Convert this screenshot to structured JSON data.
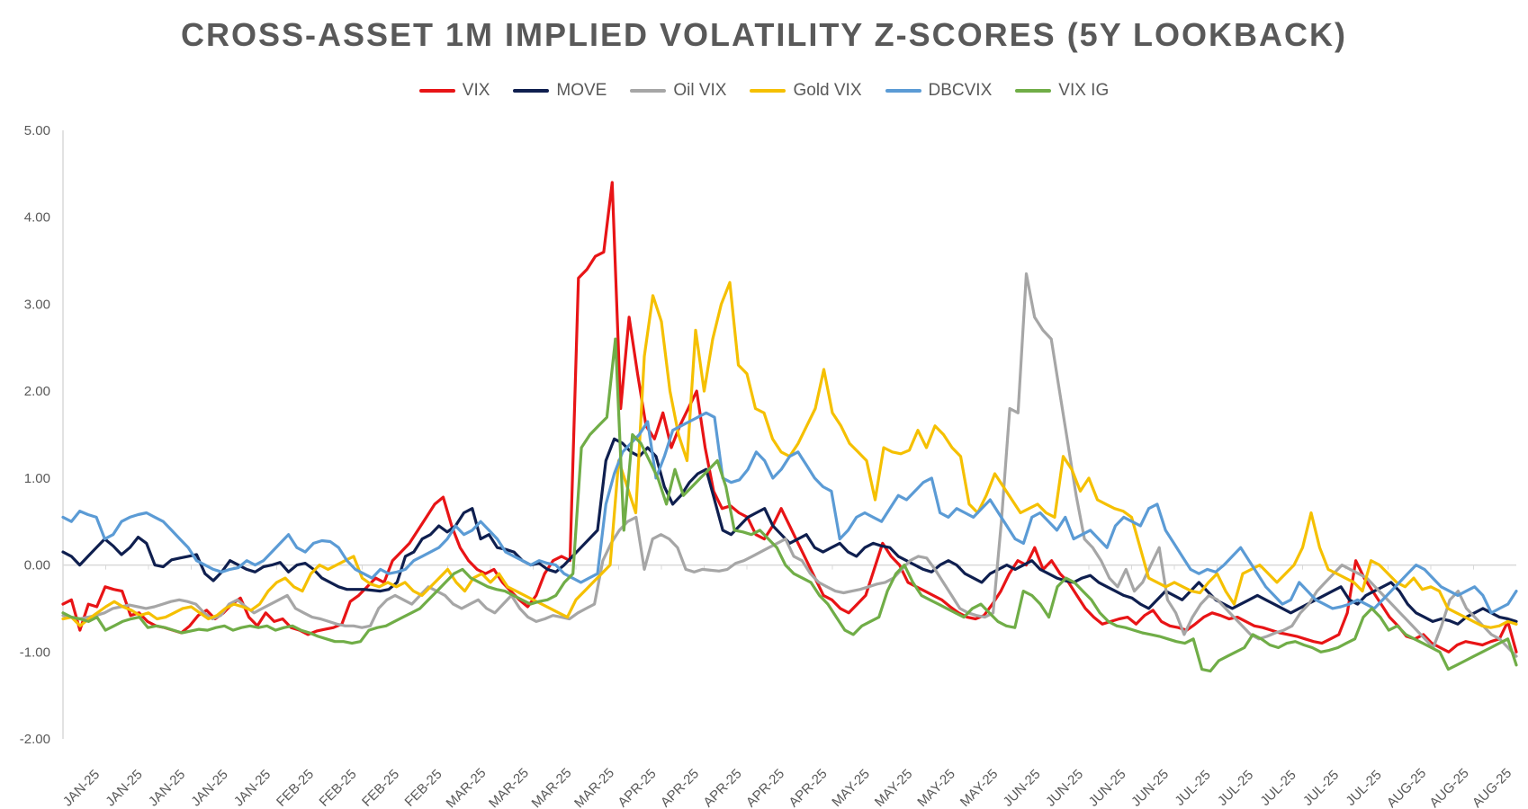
{
  "chart_data": {
    "type": "line",
    "title": "CROSS-ASSET 1M IMPLIED VOLATILITY Z-SCORES (5Y LOOKBACK)",
    "xlabel": "",
    "ylabel": "",
    "ylim": [
      -2,
      5
    ],
    "y_ticks": [
      "5.00",
      "4.00",
      "3.00",
      "2.00",
      "1.00",
      "0.00",
      "-1.00",
      "-2.00"
    ],
    "x_tick_labels": [
      "JAN-25",
      "JAN-25",
      "JAN-25",
      "JAN-25",
      "JAN-25",
      "FEB-25",
      "FEB-25",
      "FEB-25",
      "FEB-25",
      "MAR-25",
      "MAR-25",
      "MAR-25",
      "MAR-25",
      "APR-25",
      "APR-25",
      "APR-25",
      "APR-25",
      "APR-25",
      "MAY-25",
      "MAY-25",
      "MAY-25",
      "MAY-25",
      "JUN-25",
      "JUN-25",
      "JUN-25",
      "JUN-25",
      "JUL-25",
      "JUL-25",
      "JUL-25",
      "JUL-25",
      "JUL-25",
      "AUG-25",
      "AUG-25",
      "AUG-25"
    ],
    "legend_position": "top-center",
    "grid": false,
    "series": [
      {
        "name": "VIX",
        "color": "#e81416",
        "values": [
          -0.45,
          -0.4,
          -0.75,
          -0.45,
          -0.48,
          -0.25,
          -0.28,
          -0.3,
          -0.58,
          -0.55,
          -0.65,
          -0.7,
          -0.72,
          -0.75,
          -0.78,
          -0.7,
          -0.58,
          -0.52,
          -0.62,
          -0.55,
          -0.45,
          -0.38,
          -0.6,
          -0.7,
          -0.55,
          -0.65,
          -0.62,
          -0.72,
          -0.75,
          -0.8,
          -0.76,
          -0.74,
          -0.72,
          -0.68,
          -0.42,
          -0.35,
          -0.25,
          -0.15,
          -0.2,
          0.05,
          0.15,
          0.25,
          0.4,
          0.55,
          0.7,
          0.78,
          0.45,
          0.2,
          0.05,
          -0.05,
          -0.1,
          -0.05,
          -0.2,
          -0.3,
          -0.4,
          -0.48,
          -0.35,
          -0.1,
          0.05,
          0.1,
          0.05,
          3.3,
          3.4,
          3.55,
          3.6,
          4.4,
          1.8,
          2.85,
          2.2,
          1.6,
          1.45,
          1.75,
          1.35,
          1.6,
          1.8,
          2.0,
          1.35,
          0.85,
          0.65,
          0.68,
          0.6,
          0.55,
          0.35,
          0.3,
          0.45,
          0.65,
          0.45,
          0.25,
          0.05,
          -0.15,
          -0.35,
          -0.4,
          -0.5,
          -0.55,
          -0.45,
          -0.35,
          -0.05,
          0.25,
          0.1,
          0.0,
          -0.2,
          -0.25,
          -0.3,
          -0.35,
          -0.4,
          -0.48,
          -0.55,
          -0.6,
          -0.62,
          -0.58,
          -0.45,
          -0.3,
          -0.1,
          0.05,
          0.0,
          0.2,
          -0.05,
          0.05,
          -0.1,
          -0.2,
          -0.35,
          -0.5,
          -0.6,
          -0.68,
          -0.65,
          -0.62,
          -0.6,
          -0.68,
          -0.58,
          -0.52,
          -0.65,
          -0.7,
          -0.72,
          -0.75,
          -0.68,
          -0.6,
          -0.55,
          -0.58,
          -0.62,
          -0.6,
          -0.65,
          -0.7,
          -0.72,
          -0.75,
          -0.78,
          -0.8,
          -0.82,
          -0.85,
          -0.88,
          -0.9,
          -0.85,
          -0.8,
          -0.55,
          0.05,
          -0.15,
          -0.3,
          -0.45,
          -0.6,
          -0.7,
          -0.82,
          -0.85,
          -0.8,
          -0.9,
          -0.95,
          -1.0,
          -0.92,
          -0.88,
          -0.9,
          -0.92,
          -0.88,
          -0.85,
          -0.65,
          -1.0
        ]
      },
      {
        "name": "MOVE",
        "color": "#0f1f4f",
        "values": [
          0.15,
          0.1,
          0.0,
          0.1,
          0.2,
          0.3,
          0.22,
          0.12,
          0.2,
          0.32,
          0.25,
          0.0,
          -0.02,
          0.06,
          0.08,
          0.1,
          0.12,
          -0.1,
          -0.18,
          -0.08,
          0.05,
          0.0,
          -0.05,
          -0.08,
          -0.02,
          0.0,
          0.03,
          -0.08,
          0.0,
          0.02,
          -0.05,
          -0.15,
          -0.2,
          -0.25,
          -0.28,
          -0.28,
          -0.28,
          -0.29,
          -0.3,
          -0.28,
          -0.2,
          0.1,
          0.15,
          0.3,
          0.35,
          0.45,
          0.38,
          0.45,
          0.6,
          0.65,
          0.3,
          0.35,
          0.2,
          0.18,
          0.15,
          0.05,
          0.0,
          0.02,
          -0.05,
          -0.08,
          0.0,
          0.1,
          0.2,
          0.3,
          0.4,
          1.2,
          1.45,
          1.4,
          1.3,
          1.25,
          1.35,
          1.25,
          0.9,
          0.7,
          0.8,
          0.95,
          1.05,
          1.1,
          0.75,
          0.4,
          0.35,
          0.45,
          0.55,
          0.6,
          0.65,
          0.45,
          0.35,
          0.25,
          0.3,
          0.35,
          0.2,
          0.15,
          0.2,
          0.25,
          0.15,
          0.1,
          0.2,
          0.25,
          0.22,
          0.2,
          0.1,
          0.05,
          0.0,
          -0.05,
          -0.08,
          0.0,
          0.05,
          0.0,
          -0.1,
          -0.15,
          -0.2,
          -0.1,
          -0.05,
          0.0,
          -0.05,
          0.0,
          0.05,
          -0.05,
          -0.1,
          -0.15,
          -0.18,
          -0.2,
          -0.15,
          -0.12,
          -0.2,
          -0.25,
          -0.3,
          -0.35,
          -0.38,
          -0.45,
          -0.5,
          -0.4,
          -0.3,
          -0.35,
          -0.4,
          -0.3,
          -0.2,
          -0.3,
          -0.4,
          -0.45,
          -0.5,
          -0.45,
          -0.4,
          -0.35,
          -0.4,
          -0.45,
          -0.5,
          -0.55,
          -0.5,
          -0.45,
          -0.4,
          -0.35,
          -0.3,
          -0.25,
          -0.4,
          -0.45,
          -0.35,
          -0.3,
          -0.25,
          -0.2,
          -0.3,
          -0.45,
          -0.55,
          -0.6,
          -0.65,
          -0.62,
          -0.64,
          -0.68,
          -0.6,
          -0.55,
          -0.5,
          -0.55,
          -0.6,
          -0.62,
          -0.65
        ]
      },
      {
        "name": "Oil VIX",
        "color": "#a6a6a6",
        "values": [
          -0.58,
          -0.6,
          -0.62,
          -0.6,
          -0.58,
          -0.55,
          -0.5,
          -0.48,
          -0.46,
          -0.48,
          -0.5,
          -0.48,
          -0.45,
          -0.42,
          -0.4,
          -0.42,
          -0.45,
          -0.55,
          -0.62,
          -0.58,
          -0.45,
          -0.4,
          -0.48,
          -0.55,
          -0.5,
          -0.45,
          -0.4,
          -0.35,
          -0.5,
          -0.55,
          -0.6,
          -0.62,
          -0.65,
          -0.68,
          -0.7,
          -0.7,
          -0.72,
          -0.7,
          -0.5,
          -0.4,
          -0.35,
          -0.4,
          -0.45,
          -0.35,
          -0.25,
          -0.3,
          -0.35,
          -0.45,
          -0.5,
          -0.45,
          -0.4,
          -0.5,
          -0.55,
          -0.45,
          -0.35,
          -0.5,
          -0.6,
          -0.65,
          -0.62,
          -0.58,
          -0.6,
          -0.62,
          -0.55,
          -0.5,
          -0.45,
          0.05,
          0.25,
          0.4,
          0.5,
          0.55,
          -0.05,
          0.3,
          0.35,
          0.3,
          0.2,
          -0.05,
          -0.08,
          -0.05,
          -0.06,
          -0.07,
          -0.05,
          0.02,
          0.05,
          0.1,
          0.15,
          0.2,
          0.25,
          0.3,
          0.1,
          0.05,
          -0.1,
          -0.2,
          -0.25,
          -0.3,
          -0.32,
          -0.3,
          -0.28,
          -0.25,
          -0.22,
          -0.2,
          -0.15,
          -0.05,
          0.05,
          0.1,
          0.08,
          -0.05,
          -0.2,
          -0.35,
          -0.5,
          -0.55,
          -0.58,
          -0.6,
          -0.55,
          0.5,
          1.8,
          1.75,
          3.35,
          2.85,
          2.7,
          2.6,
          2.0,
          1.4,
          0.8,
          0.3,
          0.2,
          0.05,
          -0.15,
          -0.25,
          -0.05,
          -0.3,
          -0.2,
          0.0,
          0.2,
          -0.4,
          -0.55,
          -0.8,
          -0.6,
          -0.45,
          -0.35,
          -0.4,
          -0.5,
          -0.6,
          -0.7,
          -0.8,
          -0.85,
          -0.82,
          -0.78,
          -0.75,
          -0.7,
          -0.55,
          -0.45,
          -0.3,
          -0.2,
          -0.1,
          0.0,
          -0.05,
          -0.1,
          -0.15,
          -0.25,
          -0.35,
          -0.45,
          -0.55,
          -0.65,
          -0.75,
          -0.85,
          -0.95,
          -0.7,
          -0.4,
          -0.3,
          -0.5,
          -0.6,
          -0.7,
          -0.8,
          -0.85,
          -0.95,
          -1.05
        ]
      },
      {
        "name": "Gold VIX",
        "color": "#f5c000",
        "values": [
          -0.62,
          -0.6,
          -0.7,
          -0.62,
          -0.55,
          -0.48,
          -0.42,
          -0.48,
          -0.52,
          -0.58,
          -0.55,
          -0.62,
          -0.6,
          -0.55,
          -0.5,
          -0.48,
          -0.55,
          -0.62,
          -0.58,
          -0.5,
          -0.45,
          -0.48,
          -0.52,
          -0.45,
          -0.3,
          -0.2,
          -0.15,
          -0.25,
          -0.3,
          -0.1,
          0.0,
          -0.05,
          0.0,
          0.05,
          0.1,
          -0.15,
          -0.22,
          -0.25,
          -0.2,
          -0.25,
          -0.2,
          -0.3,
          -0.35,
          -0.25,
          -0.15,
          -0.05,
          -0.2,
          -0.3,
          -0.15,
          -0.1,
          -0.2,
          -0.1,
          -0.25,
          -0.3,
          -0.35,
          -0.4,
          -0.45,
          -0.5,
          -0.55,
          -0.6,
          -0.4,
          -0.3,
          -0.2,
          -0.1,
          0.0,
          1.2,
          0.9,
          0.6,
          2.4,
          3.1,
          2.8,
          2.0,
          1.5,
          1.2,
          2.7,
          2.0,
          2.6,
          3.0,
          3.25,
          2.3,
          2.2,
          1.8,
          1.75,
          1.45,
          1.3,
          1.25,
          1.4,
          1.6,
          1.8,
          2.25,
          1.75,
          1.6,
          1.4,
          1.3,
          1.2,
          0.75,
          1.35,
          1.3,
          1.28,
          1.32,
          1.55,
          1.35,
          1.6,
          1.5,
          1.35,
          1.25,
          0.7,
          0.6,
          0.8,
          1.05,
          0.9,
          0.75,
          0.6,
          0.65,
          0.7,
          0.6,
          0.55,
          1.25,
          1.1,
          0.85,
          1.0,
          0.75,
          0.7,
          0.65,
          0.62,
          0.55,
          0.2,
          -0.15,
          -0.2,
          -0.25,
          -0.2,
          -0.25,
          -0.3,
          -0.32,
          -0.2,
          -0.1,
          -0.3,
          -0.45,
          -0.1,
          -0.05,
          0.0,
          -0.1,
          -0.2,
          -0.1,
          0.0,
          0.2,
          0.6,
          0.2,
          -0.05,
          -0.1,
          -0.15,
          -0.2,
          -0.3,
          0.05,
          0.0,
          -0.1,
          -0.2,
          -0.25,
          -0.15,
          -0.28,
          -0.25,
          -0.3,
          -0.5,
          -0.55,
          -0.6,
          -0.65,
          -0.7,
          -0.72,
          -0.7,
          -0.65,
          -0.68
        ]
      },
      {
        "name": "DBCVIX",
        "color": "#5b9bd5",
        "values": [
          0.55,
          0.5,
          0.62,
          0.58,
          0.55,
          0.3,
          0.35,
          0.5,
          0.55,
          0.58,
          0.6,
          0.55,
          0.5,
          0.4,
          0.3,
          0.2,
          0.05,
          0.0,
          -0.05,
          -0.08,
          -0.05,
          -0.03,
          0.05,
          0.0,
          0.05,
          0.15,
          0.25,
          0.35,
          0.2,
          0.15,
          0.25,
          0.28,
          0.27,
          0.2,
          0.05,
          -0.05,
          -0.1,
          -0.15,
          -0.05,
          -0.1,
          -0.08,
          -0.05,
          0.05,
          0.1,
          0.15,
          0.2,
          0.3,
          0.45,
          0.35,
          0.4,
          0.5,
          0.4,
          0.3,
          0.15,
          0.1,
          0.05,
          0.0,
          0.05,
          0.02,
          0.0,
          -0.1,
          -0.15,
          -0.2,
          -0.15,
          -0.1,
          0.7,
          1.05,
          1.3,
          1.4,
          1.5,
          1.65,
          1.0,
          1.25,
          1.55,
          1.6,
          1.65,
          1.7,
          1.75,
          1.7,
          1.0,
          0.95,
          0.98,
          1.1,
          1.3,
          1.2,
          1.0,
          1.1,
          1.25,
          1.3,
          1.15,
          1.0,
          0.9,
          0.85,
          0.3,
          0.4,
          0.55,
          0.6,
          0.55,
          0.5,
          0.65,
          0.8,
          0.75,
          0.85,
          0.95,
          1.0,
          0.6,
          0.55,
          0.65,
          0.6,
          0.55,
          0.65,
          0.75,
          0.6,
          0.45,
          0.3,
          0.25,
          0.55,
          0.6,
          0.5,
          0.4,
          0.55,
          0.3,
          0.35,
          0.4,
          0.3,
          0.2,
          0.45,
          0.55,
          0.5,
          0.45,
          0.65,
          0.7,
          0.4,
          0.25,
          0.1,
          -0.05,
          -0.1,
          -0.05,
          -0.08,
          0.0,
          0.1,
          0.2,
          0.05,
          -0.1,
          -0.25,
          -0.35,
          -0.45,
          -0.4,
          -0.2,
          -0.3,
          -0.4,
          -0.45,
          -0.5,
          -0.48,
          -0.45,
          -0.4,
          -0.45,
          -0.5,
          -0.4,
          -0.3,
          -0.2,
          -0.1,
          0.0,
          -0.05,
          -0.15,
          -0.25,
          -0.3,
          -0.35,
          -0.3,
          -0.25,
          -0.35,
          -0.55,
          -0.5,
          -0.45,
          -0.3
        ]
      },
      {
        "name": "VIX IG",
        "color": "#70ad47",
        "values": [
          -0.55,
          -0.6,
          -0.62,
          -0.65,
          -0.6,
          -0.75,
          -0.7,
          -0.65,
          -0.62,
          -0.6,
          -0.72,
          -0.7,
          -0.72,
          -0.75,
          -0.78,
          -0.76,
          -0.74,
          -0.75,
          -0.72,
          -0.7,
          -0.75,
          -0.72,
          -0.7,
          -0.72,
          -0.7,
          -0.75,
          -0.72,
          -0.7,
          -0.75,
          -0.78,
          -0.82,
          -0.85,
          -0.88,
          -0.88,
          -0.9,
          -0.88,
          -0.75,
          -0.72,
          -0.7,
          -0.65,
          -0.6,
          -0.55,
          -0.5,
          -0.4,
          -0.3,
          -0.2,
          -0.1,
          -0.05,
          -0.15,
          -0.2,
          -0.25,
          -0.28,
          -0.3,
          -0.35,
          -0.4,
          -0.45,
          -0.42,
          -0.4,
          -0.35,
          -0.2,
          -0.1,
          1.35,
          1.5,
          1.6,
          1.7,
          2.6,
          0.4,
          1.5,
          1.4,
          1.2,
          1.0,
          0.7,
          1.1,
          0.8,
          0.9,
          1.0,
          1.1,
          1.2,
          0.9,
          0.4,
          0.38,
          0.35,
          0.4,
          0.3,
          0.2,
          0.0,
          -0.1,
          -0.15,
          -0.2,
          -0.35,
          -0.45,
          -0.6,
          -0.75,
          -0.8,
          -0.7,
          -0.65,
          -0.6,
          -0.3,
          -0.1,
          0.0,
          -0.2,
          -0.35,
          -0.4,
          -0.45,
          -0.5,
          -0.55,
          -0.6,
          -0.5,
          -0.45,
          -0.55,
          -0.65,
          -0.7,
          -0.72,
          -0.3,
          -0.35,
          -0.45,
          -0.6,
          -0.25,
          -0.15,
          -0.2,
          -0.3,
          -0.4,
          -0.55,
          -0.65,
          -0.7,
          -0.72,
          -0.75,
          -0.78,
          -0.8,
          -0.82,
          -0.85,
          -0.88,
          -0.9,
          -0.85,
          -1.2,
          -1.22,
          -1.1,
          -1.05,
          -1.0,
          -0.95,
          -0.8,
          -0.85,
          -0.92,
          -0.95,
          -0.9,
          -0.88,
          -0.92,
          -0.95,
          -1.0,
          -0.98,
          -0.95,
          -0.9,
          -0.85,
          -0.6,
          -0.5,
          -0.6,
          -0.75,
          -0.7,
          -0.8,
          -0.85,
          -0.9,
          -0.95,
          -1.0,
          -1.2,
          -1.15,
          -1.1,
          -1.05,
          -1.0,
          -0.95,
          -0.9,
          -0.85,
          -1.15
        ]
      }
    ]
  }
}
